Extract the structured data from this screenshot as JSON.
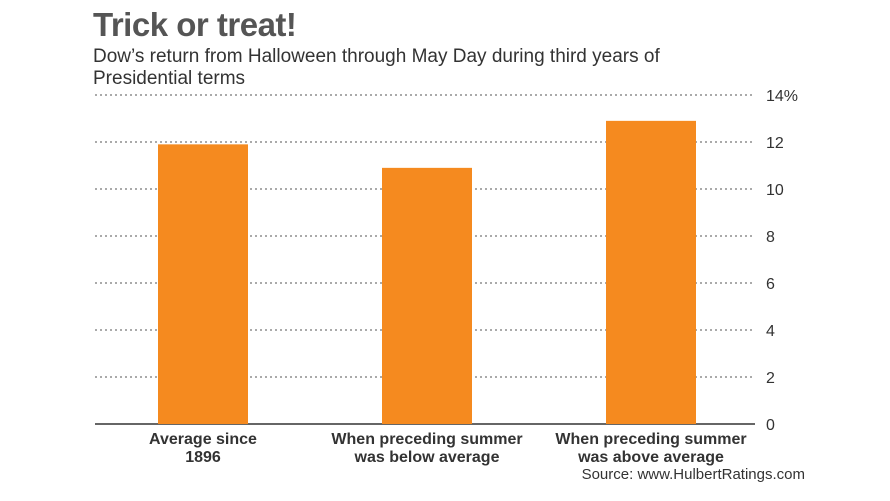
{
  "chart_data": {
    "type": "bar",
    "title": "Trick or treat!",
    "subtitle": "Dow’s return from Halloween through May Day during third years of Presidential terms",
    "categories": [
      [
        "Average since",
        "1896"
      ],
      [
        "When preceding summer",
        "was below average"
      ],
      [
        "When preceding summer",
        "was above average"
      ]
    ],
    "values": [
      11.9,
      10.9,
      12.9
    ],
    "ylim": [
      0,
      14
    ],
    "yticks": [
      0,
      2,
      4,
      6,
      8,
      10,
      12,
      14
    ],
    "ytick_labels": [
      "0",
      "2",
      "4",
      "6",
      "8",
      "10",
      "12",
      "14%"
    ],
    "y_axis_side": "right",
    "grid": true,
    "bar_color": "#f58a1f",
    "source": "Source: www.HulbertRatings.com"
  }
}
